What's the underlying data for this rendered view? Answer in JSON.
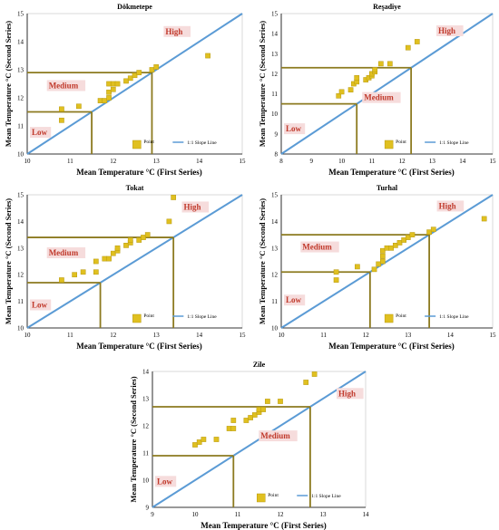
{
  "colors": {
    "slope_line": "#5b9bd5",
    "point": "#e0c020",
    "point_edge": "#b89a10",
    "threshold_line": "#8c7a1f",
    "class_label": "#c0392b",
    "class_label_bg": "#f6dcdc",
    "axis": "#000000"
  },
  "chart_data": [
    {
      "type": "scatter",
      "title": "Dökmetepe",
      "xlabel": "Mean Temperature °C (First Series)",
      "ylabel": "Mean Temperature °C (Second Series)",
      "xlim": [
        10,
        15
      ],
      "ylim": [
        10,
        15
      ],
      "xticks": [
        "10",
        "11",
        "12",
        "13",
        "14",
        "15"
      ],
      "yticks": [
        "10",
        "11",
        "12",
        "13",
        "14",
        "15"
      ],
      "grid": false,
      "legend": {
        "placement": "bottom-right",
        "point": "Point",
        "line": "1:1 Slope Line"
      },
      "thresholds": [
        11.5,
        12.9
      ],
      "classes": [
        "Low",
        "Medium",
        "High"
      ],
      "points": [
        [
          10.8,
          11.2
        ],
        [
          10.8,
          11.6
        ],
        [
          11.2,
          11.7
        ],
        [
          11.7,
          11.9
        ],
        [
          11.8,
          11.9
        ],
        [
          11.9,
          12.0
        ],
        [
          11.9,
          12.2
        ],
        [
          12.0,
          12.3
        ],
        [
          11.9,
          12.5
        ],
        [
          12.0,
          12.5
        ],
        [
          12.1,
          12.5
        ],
        [
          12.3,
          12.6
        ],
        [
          12.4,
          12.7
        ],
        [
          12.5,
          12.8
        ],
        [
          12.6,
          12.9
        ],
        [
          12.9,
          13.0
        ],
        [
          13.0,
          13.1
        ],
        [
          14.2,
          13.5
        ]
      ]
    },
    {
      "type": "scatter",
      "title": "Reşadiye",
      "xlabel": "Mean Temperature °C (First Series)",
      "ylabel": "Mean Temperature °C (Second Series)",
      "xlim": [
        8,
        15
      ],
      "ylim": [
        8,
        15
      ],
      "xticks": [
        "8",
        "9",
        "10",
        "11",
        "12",
        "13",
        "14",
        "15"
      ],
      "yticks": [
        "8",
        "9",
        "10",
        "11",
        "12",
        "13",
        "14",
        "15"
      ],
      "grid": false,
      "legend": {
        "placement": "bottom-right",
        "point": "Point",
        "line": "1:1 Slope Line"
      },
      "thresholds": [
        10.5,
        12.3
      ],
      "classes": [
        "Low",
        "Medium",
        "High"
      ],
      "points": [
        [
          9.9,
          10.9
        ],
        [
          10.0,
          11.1
        ],
        [
          10.3,
          11.2
        ],
        [
          10.4,
          11.5
        ],
        [
          10.5,
          11.6
        ],
        [
          10.5,
          11.8
        ],
        [
          10.8,
          11.7
        ],
        [
          10.9,
          11.8
        ],
        [
          11.0,
          11.9
        ],
        [
          11.0,
          12.0
        ],
        [
          11.1,
          12.1
        ],
        [
          11.1,
          12.2
        ],
        [
          11.3,
          12.5
        ],
        [
          11.6,
          12.5
        ],
        [
          12.2,
          13.3
        ],
        [
          12.5,
          13.6
        ]
      ]
    },
    {
      "type": "scatter",
      "title": "Tokat",
      "xlabel": "Mean Temperature °C (First Series)",
      "ylabel": "Mean Temperature °C (Second Series)",
      "xlim": [
        10,
        15
      ],
      "ylim": [
        10,
        15
      ],
      "xticks": [
        "10",
        "11",
        "12",
        "13",
        "14",
        "15"
      ],
      "yticks": [
        "10",
        "11",
        "12",
        "13",
        "14",
        "15"
      ],
      "grid": false,
      "legend": {
        "placement": "bottom-right",
        "point": "Point",
        "line": "1:1 Slope Line"
      },
      "thresholds": [
        11.7,
        13.4
      ],
      "classes": [
        "Low",
        "Medium",
        "High"
      ],
      "points": [
        [
          10.8,
          11.8
        ],
        [
          11.1,
          12.0
        ],
        [
          11.3,
          12.1
        ],
        [
          11.6,
          12.1
        ],
        [
          11.6,
          12.5
        ],
        [
          11.8,
          12.6
        ],
        [
          11.9,
          12.6
        ],
        [
          12.0,
          12.8
        ],
        [
          12.1,
          12.9
        ],
        [
          12.1,
          13.0
        ],
        [
          12.3,
          13.1
        ],
        [
          12.4,
          13.2
        ],
        [
          12.4,
          13.3
        ],
        [
          12.6,
          13.3
        ],
        [
          12.7,
          13.4
        ],
        [
          12.8,
          13.5
        ],
        [
          13.3,
          14.0
        ],
        [
          13.4,
          14.9
        ]
      ]
    },
    {
      "type": "scatter",
      "title": "Turhal",
      "xlabel": "Mean Temperature °C (First Series)",
      "ylabel": "Mean Temperature °C (Second Series)",
      "xlim": [
        10,
        15
      ],
      "ylim": [
        10,
        15
      ],
      "xticks": [
        "10",
        "11",
        "12",
        "13",
        "14",
        "15"
      ],
      "yticks": [
        "10",
        "11",
        "12",
        "13",
        "14",
        "15"
      ],
      "grid": false,
      "legend": {
        "placement": "bottom-right",
        "point": "Point",
        "line": "1:1 Slope Line"
      },
      "thresholds": [
        12.1,
        13.5
      ],
      "classes": [
        "Low",
        "Medium",
        "High"
      ],
      "points": [
        [
          11.3,
          11.8
        ],
        [
          11.3,
          12.1
        ],
        [
          11.8,
          12.3
        ],
        [
          12.2,
          12.2
        ],
        [
          12.3,
          12.4
        ],
        [
          12.4,
          12.5
        ],
        [
          12.4,
          12.7
        ],
        [
          12.4,
          12.9
        ],
        [
          12.5,
          13.0
        ],
        [
          12.6,
          13.0
        ],
        [
          12.7,
          13.1
        ],
        [
          12.8,
          13.2
        ],
        [
          12.9,
          13.3
        ],
        [
          13.0,
          13.4
        ],
        [
          13.1,
          13.5
        ],
        [
          13.5,
          13.6
        ],
        [
          13.6,
          13.7
        ],
        [
          14.8,
          14.1
        ]
      ]
    },
    {
      "type": "scatter",
      "title": "Zile",
      "xlabel": "Mean Temperature °C (First Series)",
      "ylabel": "Mean Temperature °C (Second Series)",
      "xlim": [
        9,
        14
      ],
      "ylim": [
        9,
        14
      ],
      "xticks": [
        "9",
        "10",
        "11",
        "12",
        "13",
        "14"
      ],
      "yticks": [
        "9",
        "10",
        "11",
        "12",
        "13",
        "14"
      ],
      "grid": false,
      "legend": {
        "placement": "bottom-right",
        "point": "Point",
        "line": "1:1 Slope Line"
      },
      "thresholds": [
        10.9,
        12.7
      ],
      "classes": [
        "Low",
        "Medium",
        "High"
      ],
      "points": [
        [
          10.0,
          11.3
        ],
        [
          10.1,
          11.4
        ],
        [
          10.2,
          11.5
        ],
        [
          10.5,
          11.5
        ],
        [
          10.8,
          11.9
        ],
        [
          10.9,
          11.9
        ],
        [
          10.9,
          12.2
        ],
        [
          11.2,
          12.2
        ],
        [
          11.3,
          12.3
        ],
        [
          11.4,
          12.4
        ],
        [
          11.5,
          12.5
        ],
        [
          11.5,
          12.6
        ],
        [
          11.6,
          12.6
        ],
        [
          11.7,
          12.9
        ],
        [
          12.0,
          12.9
        ],
        [
          12.6,
          13.6
        ],
        [
          12.8,
          13.9
        ]
      ]
    }
  ]
}
